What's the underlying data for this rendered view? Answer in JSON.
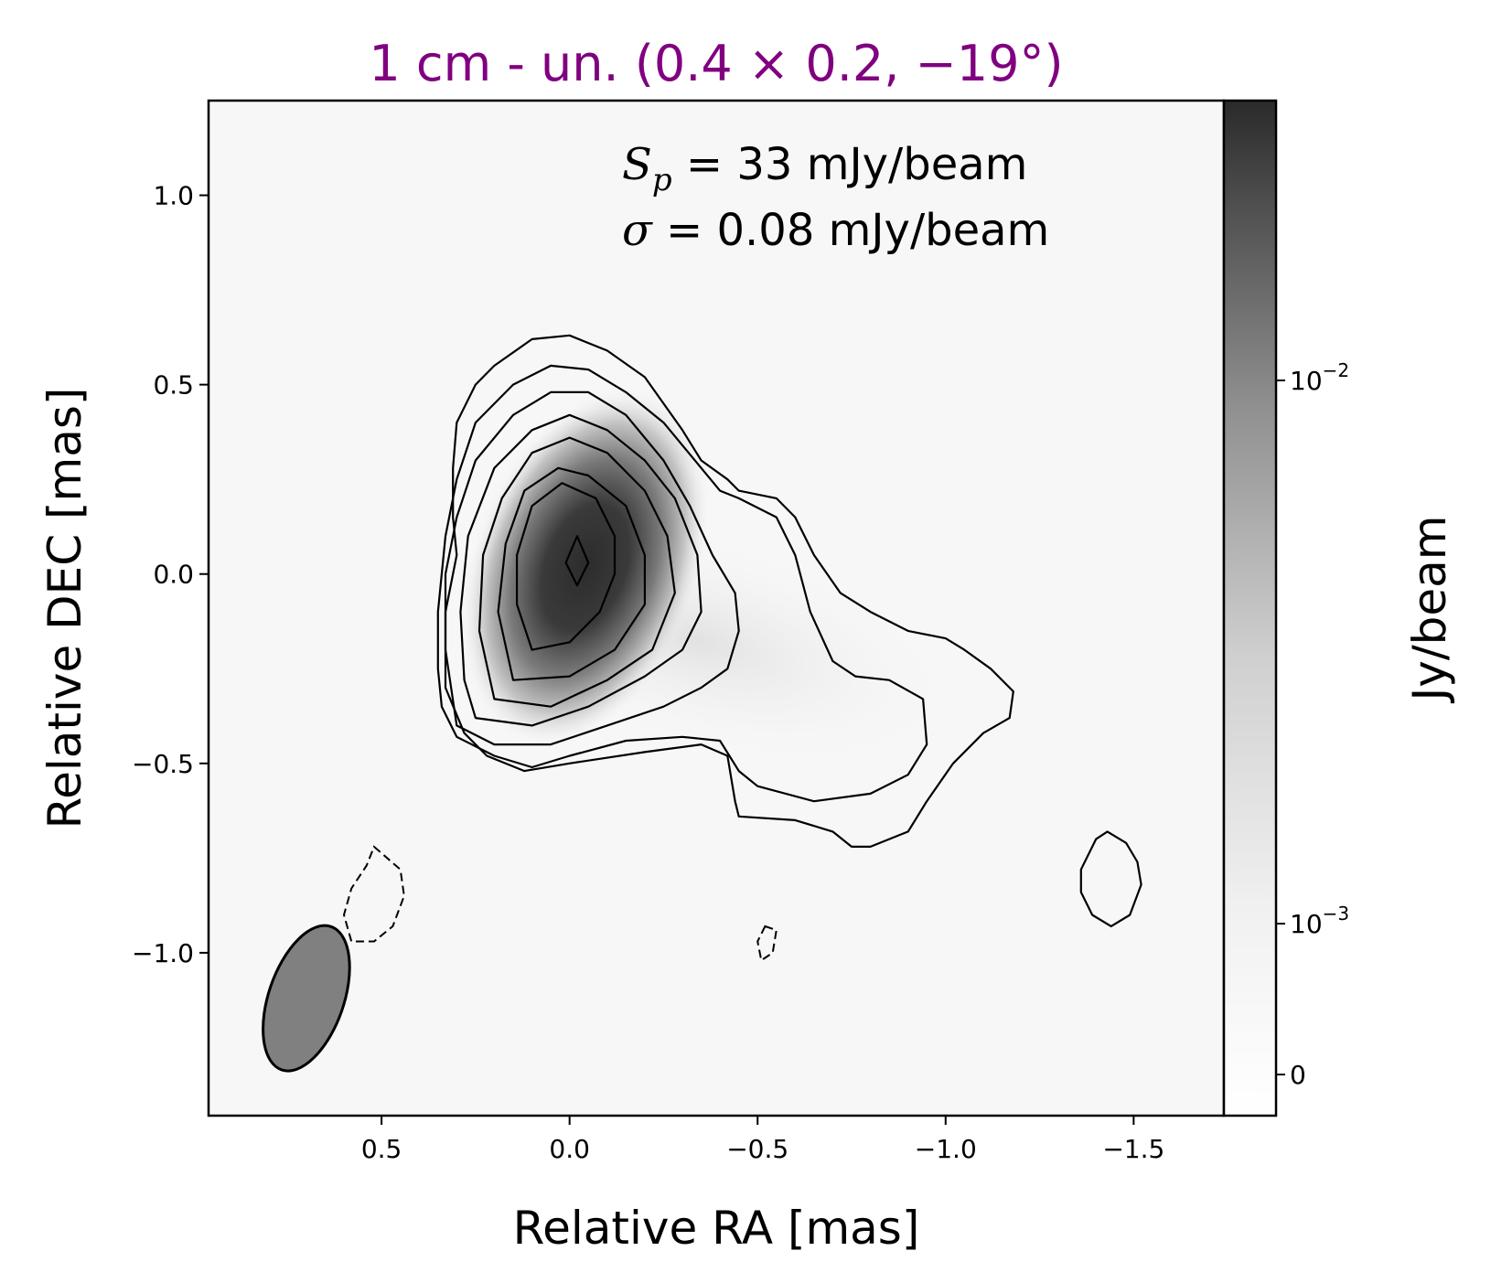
{
  "colors": {
    "title": "#800080",
    "beam_fill": "#808080",
    "colormap_low": "#ffffff",
    "colormap_high": "#2a2a2a"
  },
  "chart_data": {
    "type": "heatmap",
    "title": "1 cm - un. (0.4 × 0.2, −19°)",
    "annotations": [
      {
        "symbol": "S",
        "subscript": "p",
        "text": " = 33 mJy/beam"
      },
      {
        "symbol": "σ",
        "subscript": "",
        "text": " = 0.08 mJy/beam"
      }
    ],
    "xlabel": "Relative RA [mas]",
    "ylabel": "Relative DEC [mas]",
    "xlim": [
      0.96,
      -1.74
    ],
    "ylim": [
      -1.43,
      1.25
    ],
    "x_ticks": [
      {
        "value": 0.5,
        "label": "0.5"
      },
      {
        "value": 0.0,
        "label": "0.0"
      },
      {
        "value": -0.5,
        "label": "−0.5"
      },
      {
        "value": -1.0,
        "label": "−1.0"
      },
      {
        "value": -1.5,
        "label": "−1.5"
      }
    ],
    "y_ticks": [
      {
        "value": 1.0,
        "label": "1.0"
      },
      {
        "value": 0.5,
        "label": "0.5"
      },
      {
        "value": 0.0,
        "label": "0.0"
      },
      {
        "value": -0.5,
        "label": "−0.5"
      },
      {
        "value": -1.0,
        "label": "−1.0"
      }
    ],
    "colorbar": {
      "label": "Jy/beam",
      "scale": "log",
      "ticks": [
        {
          "value": 0.01,
          "base": "10",
          "exp": "−2"
        },
        {
          "value": 0.001,
          "base": "10",
          "exp": "−3"
        },
        {
          "value": 0,
          "label": "0"
        }
      ]
    },
    "peak_flux_mJy_per_beam": 33,
    "rms_mJy_per_beam": 0.08,
    "peak_position": [
      -0.02,
      0.03
    ],
    "beam": {
      "major_mas": 0.4,
      "minor_mas": 0.2,
      "pa_deg": -19,
      "center": [
        0.7,
        -1.12
      ]
    },
    "contours": [
      {
        "level": 1,
        "points": [
          [
            0.3,
            0.05
          ],
          [
            0.33,
            -0.1
          ],
          [
            0.33,
            -0.3
          ],
          [
            0.28,
            -0.42
          ],
          [
            0.22,
            -0.48
          ],
          [
            0.12,
            -0.52
          ],
          [
            0.0,
            -0.5
          ],
          [
            -0.2,
            -0.47
          ],
          [
            -0.35,
            -0.45
          ],
          [
            -0.42,
            -0.48
          ],
          [
            -0.44,
            -0.6
          ],
          [
            -0.45,
            -0.64
          ],
          [
            -0.6,
            -0.65
          ],
          [
            -0.7,
            -0.68
          ],
          [
            -0.75,
            -0.72
          ],
          [
            -0.8,
            -0.72
          ],
          [
            -0.9,
            -0.68
          ],
          [
            -0.95,
            -0.6
          ],
          [
            -1.02,
            -0.5
          ],
          [
            -1.1,
            -0.42
          ],
          [
            -1.17,
            -0.38
          ],
          [
            -1.18,
            -0.31
          ],
          [
            -1.12,
            -0.25
          ],
          [
            -1.05,
            -0.2
          ],
          [
            -1.0,
            -0.17
          ],
          [
            -0.9,
            -0.15
          ],
          [
            -0.8,
            -0.1
          ],
          [
            -0.72,
            -0.05
          ],
          [
            -0.65,
            0.05
          ],
          [
            -0.6,
            0.15
          ],
          [
            -0.55,
            0.2
          ],
          [
            -0.45,
            0.22
          ],
          [
            -0.42,
            0.25
          ],
          [
            -0.35,
            0.3
          ],
          [
            -0.3,
            0.38
          ],
          [
            -0.25,
            0.45
          ],
          [
            -0.2,
            0.52
          ],
          [
            -0.1,
            0.59
          ],
          [
            0.0,
            0.63
          ],
          [
            0.1,
            0.62
          ],
          [
            0.2,
            0.55
          ],
          [
            0.25,
            0.5
          ],
          [
            0.3,
            0.4
          ],
          [
            0.31,
            0.28
          ],
          [
            0.31,
            0.15
          ]
        ]
      },
      {
        "level": 2,
        "points": [
          [
            0.34,
            -0.35
          ],
          [
            0.3,
            -0.43
          ],
          [
            0.2,
            -0.48
          ],
          [
            0.1,
            -0.51
          ],
          [
            0.0,
            -0.48
          ],
          [
            -0.15,
            -0.44
          ],
          [
            -0.3,
            -0.43
          ],
          [
            -0.4,
            -0.44
          ],
          [
            -0.45,
            -0.52
          ],
          [
            -0.5,
            -0.56
          ],
          [
            -0.65,
            -0.6
          ],
          [
            -0.8,
            -0.58
          ],
          [
            -0.9,
            -0.53
          ],
          [
            -0.95,
            -0.45
          ],
          [
            -0.94,
            -0.33
          ],
          [
            -0.85,
            -0.28
          ],
          [
            -0.76,
            -0.27
          ],
          [
            -0.7,
            -0.23
          ],
          [
            -0.64,
            -0.1
          ],
          [
            -0.6,
            0.05
          ],
          [
            -0.55,
            0.15
          ],
          [
            -0.45,
            0.2
          ],
          [
            -0.4,
            0.22
          ],
          [
            -0.35,
            0.28
          ],
          [
            -0.25,
            0.4
          ],
          [
            -0.15,
            0.48
          ],
          [
            -0.05,
            0.54
          ],
          [
            0.05,
            0.55
          ],
          [
            0.15,
            0.5
          ],
          [
            0.25,
            0.4
          ],
          [
            0.3,
            0.25
          ],
          [
            0.33,
            0.1
          ],
          [
            0.35,
            -0.1
          ],
          [
            0.35,
            -0.25
          ]
        ]
      },
      {
        "level": 3,
        "points": [
          [
            0.3,
            -0.4
          ],
          [
            0.2,
            -0.45
          ],
          [
            0.05,
            -0.45
          ],
          [
            -0.1,
            -0.4
          ],
          [
            -0.25,
            -0.35
          ],
          [
            -0.35,
            -0.3
          ],
          [
            -0.42,
            -0.25
          ],
          [
            -0.45,
            -0.15
          ],
          [
            -0.44,
            -0.05
          ],
          [
            -0.38,
            0.05
          ],
          [
            -0.32,
            0.18
          ],
          [
            -0.25,
            0.3
          ],
          [
            -0.15,
            0.42
          ],
          [
            -0.05,
            0.48
          ],
          [
            0.05,
            0.48
          ],
          [
            0.15,
            0.42
          ],
          [
            0.25,
            0.3
          ],
          [
            0.3,
            0.15
          ],
          [
            0.33,
            0.0
          ],
          [
            0.33,
            -0.2
          ]
        ]
      },
      {
        "level": 4,
        "points": [
          [
            0.25,
            -0.38
          ],
          [
            0.1,
            -0.4
          ],
          [
            -0.05,
            -0.35
          ],
          [
            -0.2,
            -0.27
          ],
          [
            -0.3,
            -0.2
          ],
          [
            -0.35,
            -0.1
          ],
          [
            -0.34,
            0.05
          ],
          [
            -0.28,
            0.2
          ],
          [
            -0.2,
            0.3
          ],
          [
            -0.1,
            0.38
          ],
          [
            0.0,
            0.42
          ],
          [
            0.1,
            0.38
          ],
          [
            0.2,
            0.28
          ],
          [
            0.27,
            0.1
          ],
          [
            0.29,
            -0.1
          ],
          [
            0.28,
            -0.28
          ]
        ]
      },
      {
        "level": 5,
        "points": [
          [
            0.2,
            -0.33
          ],
          [
            0.05,
            -0.35
          ],
          [
            -0.1,
            -0.28
          ],
          [
            -0.22,
            -0.2
          ],
          [
            -0.28,
            -0.05
          ],
          [
            -0.26,
            0.1
          ],
          [
            -0.2,
            0.22
          ],
          [
            -0.1,
            0.32
          ],
          [
            0.0,
            0.36
          ],
          [
            0.1,
            0.32
          ],
          [
            0.18,
            0.2
          ],
          [
            0.23,
            0.05
          ],
          [
            0.24,
            -0.15
          ]
        ]
      },
      {
        "level": 6,
        "points": [
          [
            0.15,
            -0.28
          ],
          [
            0.0,
            -0.27
          ],
          [
            -0.12,
            -0.2
          ],
          [
            -0.2,
            -0.08
          ],
          [
            -0.2,
            0.05
          ],
          [
            -0.15,
            0.18
          ],
          [
            -0.05,
            0.26
          ],
          [
            0.03,
            0.28
          ],
          [
            0.12,
            0.22
          ],
          [
            0.17,
            0.08
          ],
          [
            0.19,
            -0.1
          ]
        ]
      },
      {
        "level": 7,
        "points": [
          [
            0.1,
            -0.2
          ],
          [
            0.0,
            -0.18
          ],
          [
            -0.08,
            -0.1
          ],
          [
            -0.12,
            0.0
          ],
          [
            -0.12,
            0.1
          ],
          [
            -0.07,
            0.2
          ],
          [
            0.02,
            0.24
          ],
          [
            0.1,
            0.18
          ],
          [
            0.14,
            0.05
          ],
          [
            0.14,
            -0.08
          ]
        ]
      },
      {
        "level": 8,
        "points": [
          [
            -0.02,
            0.1
          ],
          [
            0.01,
            0.03
          ],
          [
            -0.02,
            -0.03
          ],
          [
            -0.05,
            0.03
          ]
        ]
      },
      {
        "level": 1,
        "points": [
          [
            -1.43,
            -0.68
          ],
          [
            -1.4,
            -0.7
          ],
          [
            -1.36,
            -0.78
          ],
          [
            -1.36,
            -0.84
          ],
          [
            -1.39,
            -0.9
          ],
          [
            -1.44,
            -0.93
          ],
          [
            -1.49,
            -0.9
          ],
          [
            -1.52,
            -0.82
          ],
          [
            -1.51,
            -0.76
          ],
          [
            -1.48,
            -0.71
          ]
        ]
      },
      {
        "level": -1,
        "points": [
          [
            0.52,
            -0.72
          ],
          [
            0.45,
            -0.78
          ],
          [
            0.44,
            -0.85
          ],
          [
            0.47,
            -0.93
          ],
          [
            0.52,
            -0.97
          ],
          [
            0.58,
            -0.97
          ],
          [
            0.6,
            -0.9
          ],
          [
            0.58,
            -0.83
          ],
          [
            0.54,
            -0.77
          ]
        ]
      },
      {
        "level": -1,
        "points": [
          [
            -0.52,
            -0.93
          ],
          [
            -0.55,
            -0.94
          ],
          [
            -0.54,
            -1.0
          ],
          [
            -0.51,
            -1.02
          ],
          [
            -0.5,
            -0.97
          ]
        ]
      }
    ]
  }
}
